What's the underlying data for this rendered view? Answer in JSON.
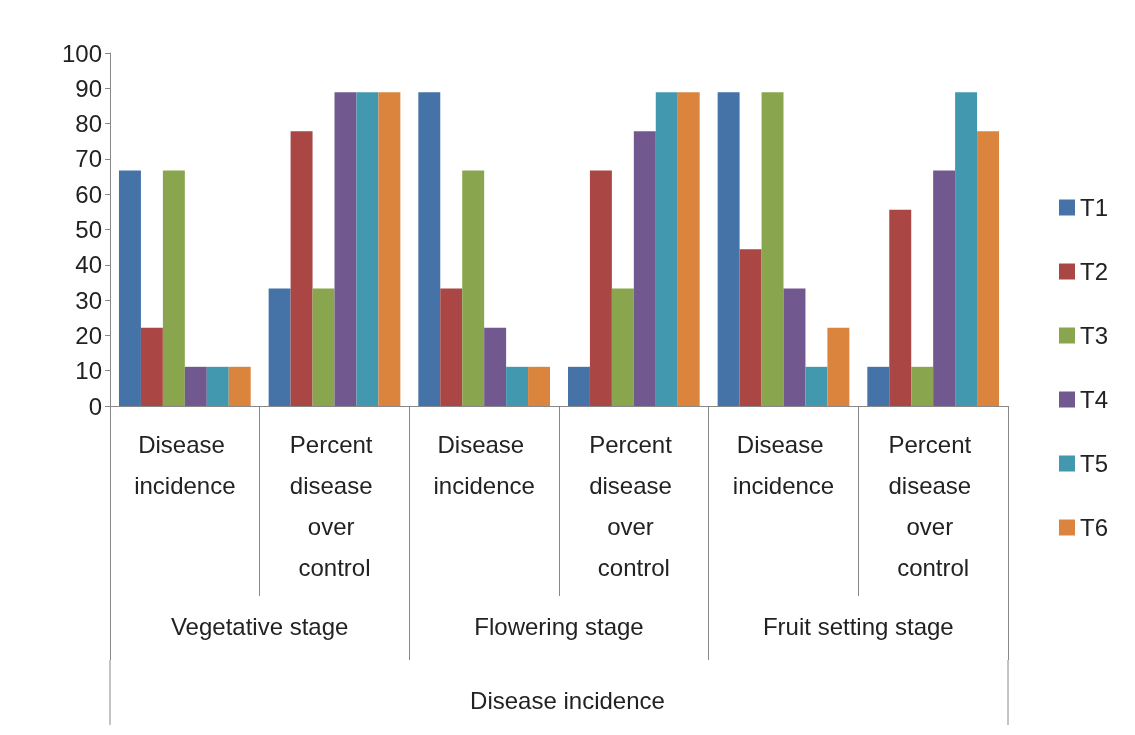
{
  "chart_data": {
    "type": "bar",
    "xlabel": "Disease incidence",
    "categories": [
      "Disease incidence",
      "Percent disease over control",
      "Disease incidence",
      "Percent disease over control",
      "Disease incidence",
      "Percent disease over control"
    ],
    "annotations": [
      "Vegetative stage",
      "Flowering stage",
      "Fruit setting stage"
    ],
    "series": [
      {
        "name": "T1",
        "color": "#4572a7",
        "values": [
          66.7,
          33.3,
          88.9,
          11.1,
          88.9,
          11.1
        ]
      },
      {
        "name": "T2",
        "color": "#aa4643",
        "values": [
          22.2,
          77.8,
          33.3,
          66.7,
          44.4,
          55.6
        ]
      },
      {
        "name": "T3",
        "color": "#89a54e",
        "values": [
          66.7,
          33.3,
          66.7,
          33.3,
          88.9,
          11.1
        ]
      },
      {
        "name": "T4",
        "color": "#71588f",
        "values": [
          11.1,
          88.9,
          22.2,
          77.8,
          33.3,
          66.7
        ]
      },
      {
        "name": "T5",
        "color": "#4198af",
        "values": [
          11.1,
          88.9,
          11.1,
          88.9,
          11.1,
          88.9
        ]
      },
      {
        "name": "T6",
        "color": "#db843d",
        "values": [
          11.1,
          88.9,
          11.1,
          88.9,
          22.2,
          77.8
        ]
      }
    ],
    "ylim": [
      0,
      100
    ],
    "yticks": [
      0,
      10,
      20,
      30,
      40,
      50,
      60,
      70,
      80,
      90,
      100
    ],
    "grid": false,
    "legend": "right"
  }
}
